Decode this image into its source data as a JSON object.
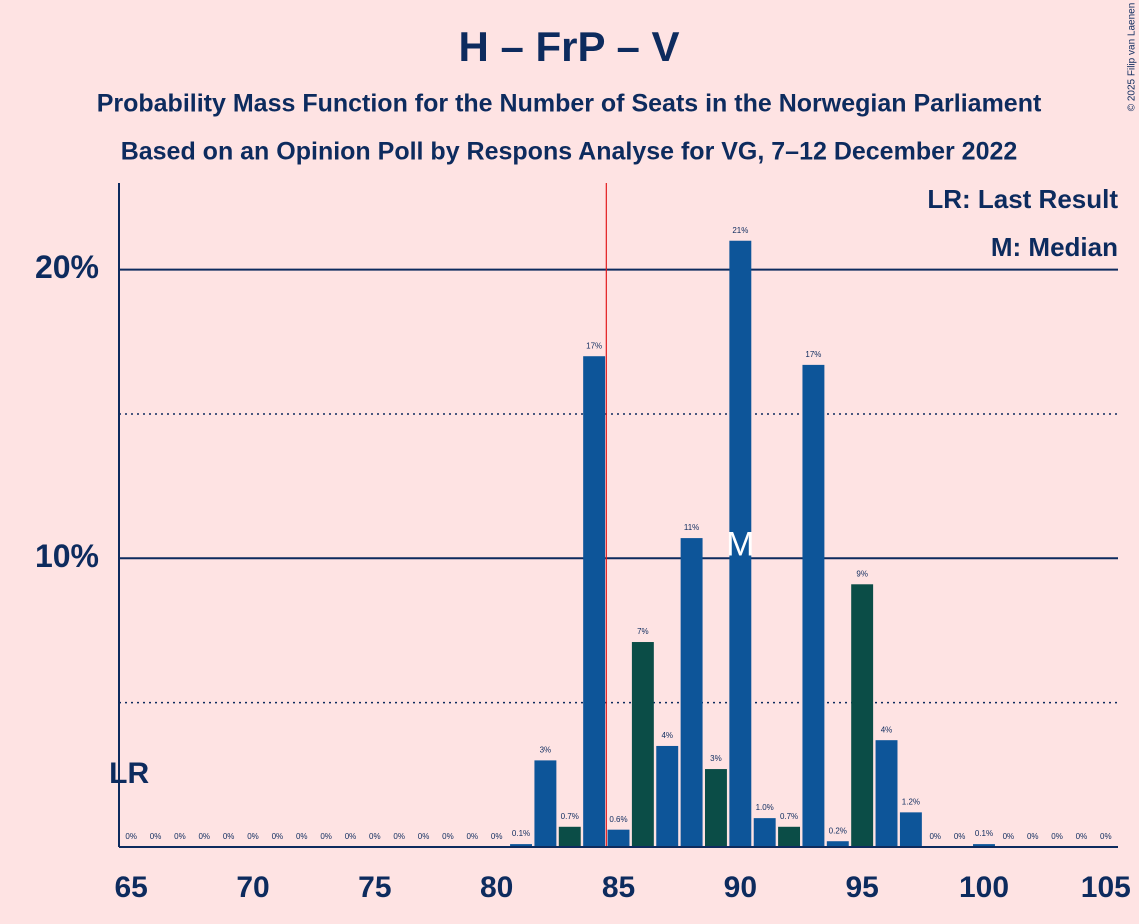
{
  "chart_data": {
    "type": "bar",
    "title": "H – FrP – V",
    "subtitle": "Probability Mass Function for the Number of Seats in the Norwegian Parliament",
    "subtitle2": "Based on an Opinion Poll by Respons Analyse for VG, 7–12 December 2022",
    "copyright": "© 2025 Filip van Laenen",
    "legend": [
      "LR: Last Result",
      "M: Median"
    ],
    "last_result": 65,
    "last_result_label": "LR",
    "median": 90,
    "median_label": "M",
    "majority_line": 84.5,
    "x": [
      65,
      66,
      67,
      68,
      69,
      70,
      71,
      72,
      73,
      74,
      75,
      76,
      77,
      78,
      79,
      80,
      81,
      82,
      83,
      84,
      85,
      86,
      87,
      88,
      89,
      90,
      91,
      92,
      93,
      94,
      95,
      96,
      97,
      98,
      99,
      100,
      101,
      102,
      103,
      104,
      105
    ],
    "values": [
      0,
      0,
      0,
      0,
      0,
      0,
      0,
      0,
      0,
      0,
      0,
      0,
      0,
      0,
      0,
      0,
      0.1,
      3.0,
      0.7,
      17.0,
      0.6,
      7.1,
      3.5,
      10.7,
      2.7,
      21.0,
      1.0,
      0.7,
      16.7,
      0.2,
      9.1,
      3.7,
      1.2,
      0,
      0,
      0.1,
      0,
      0,
      0,
      0,
      0
    ],
    "value_labels": [
      "0%",
      "0%",
      "0%",
      "0%",
      "0%",
      "0%",
      "0%",
      "0%",
      "0%",
      "0%",
      "0%",
      "0%",
      "0%",
      "0%",
      "0%",
      "0%",
      "0.1%",
      "3%",
      "0.7%",
      "17%",
      "0.6%",
      "7%",
      "4%",
      "11%",
      "3%",
      "21%",
      "1.0%",
      "0.7%",
      "17%",
      "0.2%",
      "9%",
      "4%",
      "1.2%",
      "0%",
      "0%",
      "0.1%",
      "0%",
      "0%",
      "0%",
      "0%",
      "0%"
    ],
    "colors": [
      "#0d5599",
      "#0d5599",
      "#0d5599",
      "#0d5599",
      "#0d5599",
      "#0d5599",
      "#0d5599",
      "#0d5599",
      "#0d5599",
      "#0d5599",
      "#0d5599",
      "#0d5599",
      "#0d5599",
      "#0d5599",
      "#0d5599",
      "#0d5599",
      "#0d5599",
      "#0d5599",
      "#0b4d47",
      "#0d5599",
      "#0d5599",
      "#0b4d47",
      "#0d5599",
      "#0d5599",
      "#0b4d47",
      "#0d5599",
      "#0d5599",
      "#0b4d47",
      "#0d5599",
      "#0d5599",
      "#0b4d47",
      "#0d5599",
      "#0d5599",
      "#0d5599",
      "#0d5599",
      "#0d5599",
      "#0d5599",
      "#0d5599",
      "#0d5599",
      "#0d5599",
      "#0d5599"
    ],
    "xlim": [
      64.5,
      105.5
    ],
    "xticks": [
      65,
      70,
      75,
      80,
      85,
      90,
      95,
      100,
      105
    ],
    "ylim": [
      0,
      23
    ],
    "yticks": [
      {
        "value": 10,
        "label": "10%"
      },
      {
        "value": 20,
        "label": "20%"
      }
    ],
    "minor_gridlines": [
      5,
      15
    ],
    "grid": true
  }
}
